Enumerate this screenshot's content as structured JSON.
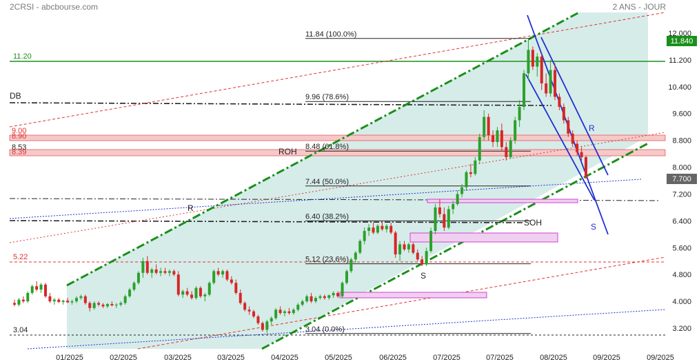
{
  "header": {
    "symbol_source": "2CRSI - abcbourse.com",
    "period": "2 ANS - JOUR"
  },
  "chart_data": {
    "type": "candlestick",
    "ylim": [
      3.0,
      12.3
    ],
    "price_ticks": [
      "12.000",
      "11.200",
      "10.400",
      "9.600",
      "8.800",
      "8.000",
      "7.200",
      "6.400",
      "5.600",
      "4.800",
      "4.000",
      "3.200"
    ],
    "date_ticks": [
      "01/2025",
      "02/2025",
      "03/2025",
      "03/2025",
      "04/2025",
      "05/2025",
      "06/2025",
      "07/2025",
      "07/2025",
      "08/2025",
      "09/2025",
      "09/2025"
    ],
    "last_price_label": "11.840",
    "current_price_label": "7.700",
    "colors": {
      "up": "#2ca02c",
      "down": "#d62728",
      "channel": "#1a8f1a",
      "fill": "#d6ece9",
      "blue": "#1f2fd0",
      "magenta": "#d040d0",
      "red": "#e03030"
    },
    "fibonacci": [
      {
        "label": "11.84  (100.0%)",
        "value": 11.84
      },
      {
        "label": "9.96  (78.6%)",
        "value": 9.96
      },
      {
        "label": "8.48  (61.8%)",
        "value": 8.48
      },
      {
        "label": "7.44  (50.0%)",
        "value": 7.44
      },
      {
        "label": "6.40  (38.2%)",
        "value": 6.4
      },
      {
        "label": "5.12  (23.6%)",
        "value": 5.12
      },
      {
        "label": "3.04  (0.0%)",
        "value": 3.04
      }
    ],
    "levels": [
      {
        "label": "11.20",
        "value": 11.2
      },
      {
        "label": "9.00",
        "value": 9.0
      },
      {
        "label": "8.90",
        "value": 8.9
      },
      {
        "label": "8.53",
        "value": 8.53
      },
      {
        "label": "8.39",
        "value": 8.39
      },
      {
        "label": "5.22",
        "value": 5.22
      },
      {
        "label": "3.04",
        "value": 3.04
      }
    ],
    "annotations": [
      "DB",
      "ROH",
      "R",
      "SOH",
      "S",
      "R",
      "S"
    ],
    "candles": [
      {
        "o": 3.95,
        "h": 4.05,
        "l": 3.85,
        "c": 3.9
      },
      {
        "o": 3.9,
        "h": 4.1,
        "l": 3.85,
        "c": 4.05
      },
      {
        "o": 4.05,
        "h": 4.15,
        "l": 3.95,
        "c": 4.0
      },
      {
        "o": 4.0,
        "h": 4.3,
        "l": 3.95,
        "c": 4.25
      },
      {
        "o": 4.25,
        "h": 4.5,
        "l": 4.2,
        "c": 4.45
      },
      {
        "o": 4.45,
        "h": 4.6,
        "l": 4.3,
        "c": 4.35
      },
      {
        "o": 4.35,
        "h": 4.55,
        "l": 4.25,
        "c": 4.5
      },
      {
        "o": 4.5,
        "h": 4.55,
        "l": 4.1,
        "c": 4.15
      },
      {
        "o": 4.15,
        "h": 4.25,
        "l": 3.95,
        "c": 4.0
      },
      {
        "o": 4.0,
        "h": 4.1,
        "l": 3.9,
        "c": 4.05
      },
      {
        "o": 4.05,
        "h": 4.1,
        "l": 3.95,
        "c": 3.98
      },
      {
        "o": 3.98,
        "h": 4.05,
        "l": 3.9,
        "c": 4.02
      },
      {
        "o": 4.02,
        "h": 4.1,
        "l": 3.95,
        "c": 3.97
      },
      {
        "o": 3.97,
        "h": 4.05,
        "l": 3.9,
        "c": 4.0
      },
      {
        "o": 4.0,
        "h": 4.15,
        "l": 3.95,
        "c": 4.1
      },
      {
        "o": 4.1,
        "h": 4.2,
        "l": 4.05,
        "c": 4.15
      },
      {
        "o": 4.15,
        "h": 4.2,
        "l": 3.9,
        "c": 3.95
      },
      {
        "o": 3.95,
        "h": 4.0,
        "l": 3.7,
        "c": 3.8
      },
      {
        "o": 3.8,
        "h": 4.0,
        "l": 3.75,
        "c": 3.95
      },
      {
        "o": 3.95,
        "h": 4.0,
        "l": 3.85,
        "c": 3.9
      },
      {
        "o": 3.9,
        "h": 3.95,
        "l": 3.8,
        "c": 3.85
      },
      {
        "o": 3.85,
        "h": 3.95,
        "l": 3.8,
        "c": 3.92
      },
      {
        "o": 3.92,
        "h": 4.0,
        "l": 3.85,
        "c": 3.88
      },
      {
        "o": 3.88,
        "h": 3.95,
        "l": 3.8,
        "c": 3.9
      },
      {
        "o": 3.9,
        "h": 4.0,
        "l": 3.85,
        "c": 3.95
      },
      {
        "o": 3.95,
        "h": 4.2,
        "l": 3.9,
        "c": 4.15
      },
      {
        "o": 4.15,
        "h": 4.4,
        "l": 4.1,
        "c": 4.35
      },
      {
        "o": 4.35,
        "h": 4.6,
        "l": 4.3,
        "c": 4.55
      },
      {
        "o": 4.55,
        "h": 4.9,
        "l": 4.5,
        "c": 4.85
      },
      {
        "o": 4.85,
        "h": 5.3,
        "l": 4.7,
        "c": 5.2
      },
      {
        "o": 5.2,
        "h": 5.35,
        "l": 4.8,
        "c": 4.85
      },
      {
        "o": 4.85,
        "h": 5.0,
        "l": 4.7,
        "c": 4.95
      },
      {
        "o": 4.95,
        "h": 5.1,
        "l": 4.8,
        "c": 4.85
      },
      {
        "o": 4.85,
        "h": 5.0,
        "l": 4.75,
        "c": 4.9
      },
      {
        "o": 4.9,
        "h": 5.0,
        "l": 4.8,
        "c": 4.85
      },
      {
        "o": 4.85,
        "h": 4.95,
        "l": 4.75,
        "c": 4.9
      },
      {
        "o": 4.9,
        "h": 4.95,
        "l": 4.75,
        "c": 4.8
      },
      {
        "o": 4.8,
        "h": 4.9,
        "l": 4.15,
        "c": 4.2
      },
      {
        "o": 4.2,
        "h": 4.35,
        "l": 4.1,
        "c": 4.3
      },
      {
        "o": 4.3,
        "h": 4.4,
        "l": 4.15,
        "c": 4.2
      },
      {
        "o": 4.2,
        "h": 4.3,
        "l": 4.05,
        "c": 4.1
      },
      {
        "o": 4.1,
        "h": 4.45,
        "l": 4.05,
        "c": 4.4
      },
      {
        "o": 4.4,
        "h": 4.45,
        "l": 4.1,
        "c": 4.15
      },
      {
        "o": 4.15,
        "h": 4.25,
        "l": 4.0,
        "c": 4.2
      },
      {
        "o": 4.2,
        "h": 4.6,
        "l": 4.15,
        "c": 4.55
      },
      {
        "o": 4.55,
        "h": 4.95,
        "l": 4.5,
        "c": 4.9
      },
      {
        "o": 4.9,
        "h": 5.0,
        "l": 4.75,
        "c": 4.8
      },
      {
        "o": 4.8,
        "h": 4.95,
        "l": 4.7,
        "c": 4.9
      },
      {
        "o": 4.9,
        "h": 4.95,
        "l": 4.6,
        "c": 4.65
      },
      {
        "o": 4.65,
        "h": 4.75,
        "l": 4.5,
        "c": 4.55
      },
      {
        "o": 4.55,
        "h": 4.65,
        "l": 4.2,
        "c": 4.25
      },
      {
        "o": 4.25,
        "h": 4.35,
        "l": 3.9,
        "c": 3.95
      },
      {
        "o": 3.95,
        "h": 4.0,
        "l": 3.7,
        "c": 3.75
      },
      {
        "o": 3.75,
        "h": 3.85,
        "l": 3.6,
        "c": 3.7
      },
      {
        "o": 3.7,
        "h": 3.75,
        "l": 3.5,
        "c": 3.55
      },
      {
        "o": 3.55,
        "h": 3.6,
        "l": 3.3,
        "c": 3.35
      },
      {
        "o": 3.35,
        "h": 3.4,
        "l": 3.1,
        "c": 3.15
      },
      {
        "o": 3.15,
        "h": 3.45,
        "l": 3.05,
        "c": 3.4
      },
      {
        "o": 3.4,
        "h": 3.55,
        "l": 3.3,
        "c": 3.5
      },
      {
        "o": 3.5,
        "h": 3.8,
        "l": 3.45,
        "c": 3.75
      },
      {
        "o": 3.75,
        "h": 3.85,
        "l": 3.6,
        "c": 3.65
      },
      {
        "o": 3.65,
        "h": 3.75,
        "l": 3.55,
        "c": 3.7
      },
      {
        "o": 3.7,
        "h": 3.8,
        "l": 3.6,
        "c": 3.65
      },
      {
        "o": 3.65,
        "h": 3.8,
        "l": 3.6,
        "c": 3.75
      },
      {
        "o": 3.75,
        "h": 3.95,
        "l": 3.7,
        "c": 3.9
      },
      {
        "o": 3.9,
        "h": 4.05,
        "l": 3.85,
        "c": 4.0
      },
      {
        "o": 4.0,
        "h": 4.2,
        "l": 3.95,
        "c": 4.15
      },
      {
        "o": 4.15,
        "h": 4.25,
        "l": 3.95,
        "c": 4.0
      },
      {
        "o": 4.0,
        "h": 4.15,
        "l": 3.95,
        "c": 4.1
      },
      {
        "o": 4.1,
        "h": 4.2,
        "l": 4.05,
        "c": 4.15
      },
      {
        "o": 4.15,
        "h": 4.2,
        "l": 4.05,
        "c": 4.1
      },
      {
        "o": 4.1,
        "h": 4.2,
        "l": 4.05,
        "c": 4.18
      },
      {
        "o": 4.18,
        "h": 4.3,
        "l": 4.1,
        "c": 4.25
      },
      {
        "o": 4.25,
        "h": 4.3,
        "l": 4.1,
        "c": 4.15
      },
      {
        "o": 4.15,
        "h": 4.6,
        "l": 4.1,
        "c": 4.55
      },
      {
        "o": 4.55,
        "h": 4.95,
        "l": 4.5,
        "c": 4.9
      },
      {
        "o": 4.9,
        "h": 5.3,
        "l": 4.85,
        "c": 5.25
      },
      {
        "o": 5.25,
        "h": 5.5,
        "l": 5.15,
        "c": 5.45
      },
      {
        "o": 5.45,
        "h": 5.85,
        "l": 5.4,
        "c": 5.8
      },
      {
        "o": 5.8,
        "h": 6.2,
        "l": 5.7,
        "c": 6.1
      },
      {
        "o": 6.1,
        "h": 6.3,
        "l": 5.95,
        "c": 6.2
      },
      {
        "o": 6.2,
        "h": 6.35,
        "l": 6.0,
        "c": 6.05
      },
      {
        "o": 6.05,
        "h": 6.3,
        "l": 6.0,
        "c": 6.25
      },
      {
        "o": 6.25,
        "h": 6.4,
        "l": 6.1,
        "c": 6.15
      },
      {
        "o": 6.15,
        "h": 6.3,
        "l": 6.05,
        "c": 6.25
      },
      {
        "o": 6.25,
        "h": 6.35,
        "l": 6.0,
        "c": 6.05
      },
      {
        "o": 6.05,
        "h": 6.1,
        "l": 5.3,
        "c": 5.4
      },
      {
        "o": 5.4,
        "h": 5.8,
        "l": 5.2,
        "c": 5.7
      },
      {
        "o": 5.7,
        "h": 5.8,
        "l": 5.5,
        "c": 5.55
      },
      {
        "o": 5.55,
        "h": 5.75,
        "l": 5.45,
        "c": 5.7
      },
      {
        "o": 5.7,
        "h": 5.75,
        "l": 5.4,
        "c": 5.45
      },
      {
        "o": 5.45,
        "h": 5.55,
        "l": 5.2,
        "c": 5.25
      },
      {
        "o": 5.25,
        "h": 5.35,
        "l": 5.05,
        "c": 5.1
      },
      {
        "o": 5.1,
        "h": 5.6,
        "l": 5.05,
        "c": 5.5
      },
      {
        "o": 5.5,
        "h": 6.2,
        "l": 5.45,
        "c": 6.1
      },
      {
        "o": 6.1,
        "h": 6.9,
        "l": 6.0,
        "c": 6.8
      },
      {
        "o": 6.8,
        "h": 7.05,
        "l": 6.5,
        "c": 6.6
      },
      {
        "o": 6.6,
        "h": 6.8,
        "l": 6.1,
        "c": 6.2
      },
      {
        "o": 6.2,
        "h": 6.85,
        "l": 6.15,
        "c": 6.75
      },
      {
        "o": 6.75,
        "h": 7.0,
        "l": 6.6,
        "c": 6.9
      },
      {
        "o": 6.9,
        "h": 7.3,
        "l": 6.85,
        "c": 7.2
      },
      {
        "o": 7.2,
        "h": 7.5,
        "l": 7.1,
        "c": 7.4
      },
      {
        "o": 7.4,
        "h": 7.9,
        "l": 7.3,
        "c": 7.85
      },
      {
        "o": 7.85,
        "h": 8.1,
        "l": 7.7,
        "c": 7.8
      },
      {
        "o": 7.8,
        "h": 8.3,
        "l": 7.75,
        "c": 8.2
      },
      {
        "o": 8.2,
        "h": 9.0,
        "l": 8.1,
        "c": 8.9
      },
      {
        "o": 8.9,
        "h": 9.7,
        "l": 8.8,
        "c": 9.5
      },
      {
        "o": 9.5,
        "h": 9.6,
        "l": 8.8,
        "c": 8.95
      },
      {
        "o": 8.95,
        "h": 9.1,
        "l": 8.6,
        "c": 8.75
      },
      {
        "o": 8.75,
        "h": 9.2,
        "l": 8.6,
        "c": 9.1
      },
      {
        "o": 9.1,
        "h": 9.3,
        "l": 8.5,
        "c": 8.6
      },
      {
        "o": 8.6,
        "h": 8.75,
        "l": 8.2,
        "c": 8.3
      },
      {
        "o": 8.3,
        "h": 8.9,
        "l": 8.25,
        "c": 8.8
      },
      {
        "o": 8.8,
        "h": 9.5,
        "l": 8.7,
        "c": 9.4
      },
      {
        "o": 9.4,
        "h": 10.0,
        "l": 9.2,
        "c": 9.8
      },
      {
        "o": 9.8,
        "h": 10.9,
        "l": 9.7,
        "c": 10.8
      },
      {
        "o": 10.8,
        "h": 11.84,
        "l": 10.6,
        "c": 11.5
      },
      {
        "o": 11.5,
        "h": 11.6,
        "l": 10.9,
        "c": 11.0
      },
      {
        "o": 11.0,
        "h": 11.4,
        "l": 10.7,
        "c": 11.3
      },
      {
        "o": 11.3,
        "h": 11.4,
        "l": 10.3,
        "c": 10.5
      },
      {
        "o": 10.5,
        "h": 10.8,
        "l": 10.1,
        "c": 10.2
      },
      {
        "o": 10.2,
        "h": 11.2,
        "l": 10.1,
        "c": 10.9
      },
      {
        "o": 10.9,
        "h": 11.1,
        "l": 10.0,
        "c": 10.1
      },
      {
        "o": 10.1,
        "h": 10.2,
        "l": 9.7,
        "c": 9.8
      },
      {
        "o": 9.8,
        "h": 9.9,
        "l": 9.3,
        "c": 9.4
      },
      {
        "o": 9.4,
        "h": 9.5,
        "l": 8.9,
        "c": 9.0
      },
      {
        "o": 9.0,
        "h": 9.1,
        "l": 8.6,
        "c": 8.7
      },
      {
        "o": 8.7,
        "h": 8.8,
        "l": 8.35,
        "c": 8.45
      },
      {
        "o": 8.45,
        "h": 8.6,
        "l": 8.2,
        "c": 8.3
      },
      {
        "o": 8.3,
        "h": 8.35,
        "l": 7.65,
        "c": 7.7
      }
    ]
  }
}
